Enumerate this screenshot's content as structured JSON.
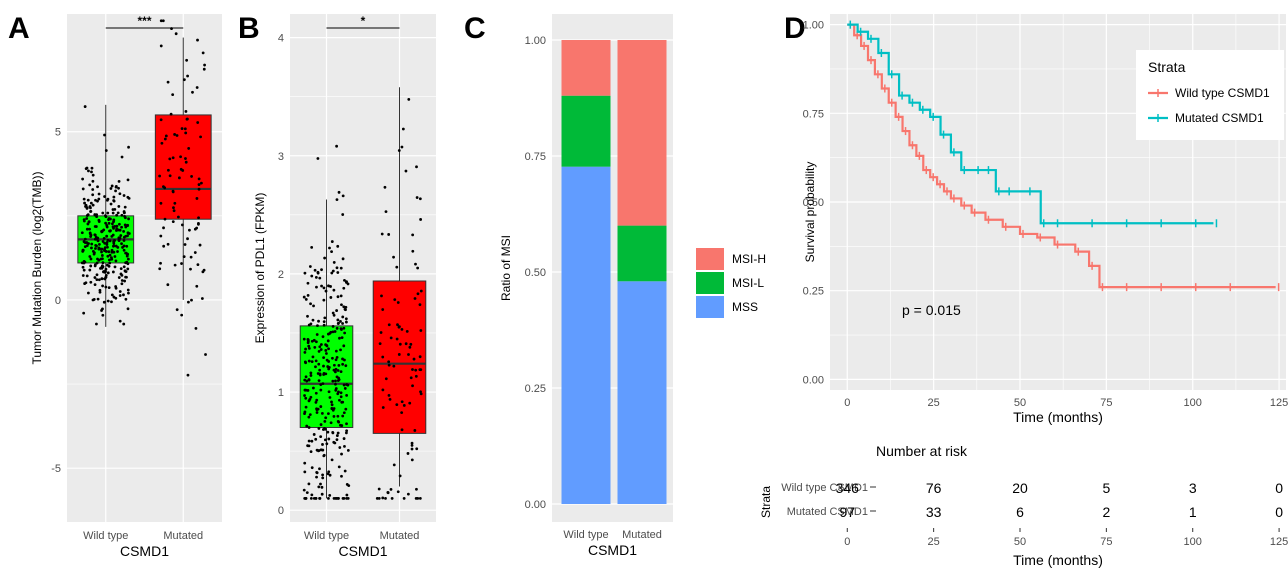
{
  "colors": {
    "panel_bg": "#ebebeb",
    "grid": "#ffffff",
    "wild_box": "#00ff00",
    "mutated_box": "#ff0000",
    "msi_h": "#f8766d",
    "msi_l": "#00ba38",
    "mss": "#619cff",
    "km_wild": "#f8766d",
    "km_mutated": "#00bfc4"
  },
  "panels": {
    "A": "A",
    "B": "B",
    "C": "C",
    "D": "D"
  },
  "chart_data": [
    {
      "id": "A",
      "type": "box",
      "xlabel": "CSMD1",
      "ylabel": "Tumor Mutation Burden (log2(TMB))",
      "categories": [
        "Wild type",
        "Mutated"
      ],
      "yticks": [
        -5,
        0,
        5
      ],
      "ylim": [
        -6.6,
        8.5
      ],
      "significance": "***",
      "boxes": [
        {
          "name": "Wild type",
          "min": -0.8,
          "q1": 1.1,
          "median": 1.8,
          "q3": 2.5,
          "max": 5.8
        },
        {
          "name": "Mutated",
          "min": 0.0,
          "q1": 2.4,
          "median": 3.3,
          "q3": 5.5,
          "max": 7.8
        }
      ]
    },
    {
      "id": "B",
      "type": "box",
      "xlabel": "CSMD1",
      "ylabel": "Expression of PDL1 (FPKM)",
      "categories": [
        "Wild type",
        "Mutated"
      ],
      "yticks": [
        0,
        1,
        2,
        3,
        4
      ],
      "ylim": [
        -0.1,
        4.2
      ],
      "significance": "*",
      "boxes": [
        {
          "name": "Wild type",
          "min": 0.1,
          "q1": 0.7,
          "median": 1.07,
          "q3": 1.56,
          "max": 2.63
        },
        {
          "name": "Mutated",
          "min": 0.2,
          "q1": 0.65,
          "median": 1.24,
          "q3": 1.94,
          "max": 3.58
        }
      ]
    },
    {
      "id": "C",
      "type": "bar",
      "stacked": true,
      "xlabel": "CSMD1",
      "ylabel": "Ratio of MSI",
      "categories": [
        "Wild type",
        "Mutated"
      ],
      "yticks": [
        "0.00",
        "0.25",
        "0.50",
        "0.75",
        "1.00"
      ],
      "ylim": [
        0,
        1
      ],
      "series": [
        {
          "name": "MSS",
          "values": [
            0.727,
            0.48
          ]
        },
        {
          "name": "MSI-L",
          "values": [
            0.153,
            0.12
          ]
        },
        {
          "name": "MSI-H",
          "values": [
            0.12,
            0.4
          ]
        }
      ],
      "legend_order": [
        "MSI-H",
        "MSI-L",
        "MSS"
      ]
    },
    {
      "id": "D",
      "type": "line",
      "step": true,
      "xlabel": "Time (months)",
      "ylabel": "Survival probability",
      "xticks": [
        0,
        25,
        50,
        75,
        100,
        125
      ],
      "yticks": [
        "0.00",
        "0.25",
        "0.50",
        "0.75",
        "1.00"
      ],
      "xlim": [
        -5,
        127
      ],
      "ylim": [
        -0.03,
        1.03
      ],
      "annotation": "p = 0.015",
      "legend_title": "Strata",
      "series": [
        {
          "name": "Wild type CSMD1",
          "x": [
            0,
            2,
            4,
            6,
            8,
            10,
            12,
            14,
            16,
            18,
            20,
            22,
            24,
            26,
            28,
            30,
            33,
            36,
            40,
            45,
            50,
            55,
            60,
            66,
            70,
            73,
            80,
            90,
            100,
            110,
            124
          ],
          "y": [
            1.0,
            0.97,
            0.94,
            0.9,
            0.86,
            0.82,
            0.78,
            0.74,
            0.7,
            0.66,
            0.63,
            0.59,
            0.57,
            0.55,
            0.53,
            0.51,
            0.49,
            0.47,
            0.45,
            0.43,
            0.41,
            0.4,
            0.38,
            0.36,
            0.32,
            0.26,
            0.26,
            0.26,
            0.26,
            0.26,
            0.26
          ]
        },
        {
          "name": "Mutated CSMD1",
          "x": [
            0,
            3,
            6,
            9,
            12,
            15,
            18,
            21,
            24,
            27,
            30,
            33,
            37,
            40,
            43,
            46,
            52,
            56,
            60,
            70,
            80,
            90,
            100,
            106
          ],
          "y": [
            1.0,
            0.98,
            0.96,
            0.92,
            0.86,
            0.8,
            0.78,
            0.76,
            0.74,
            0.69,
            0.64,
            0.59,
            0.59,
            0.59,
            0.53,
            0.53,
            0.53,
            0.44,
            0.44,
            0.44,
            0.44,
            0.44,
            0.44,
            0.44
          ]
        }
      ],
      "risk_table": {
        "title": "Number at risk",
        "strata_label": "Strata",
        "times": [
          0,
          25,
          50,
          75,
          100,
          125
        ],
        "rows": [
          {
            "name": "Wild type CSMD1",
            "counts": [
              "346",
              "76",
              "20",
              "5",
              "3",
              "0"
            ]
          },
          {
            "name": "Mutated CSMD1",
            "counts": [
              "97",
              "33",
              "6",
              "2",
              "1",
              "0"
            ]
          }
        ],
        "xlabel": "Time (months)"
      }
    }
  ]
}
